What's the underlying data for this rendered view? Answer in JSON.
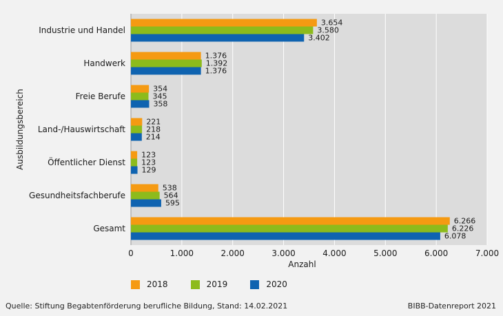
{
  "chart_data": {
    "type": "bar",
    "orientation": "horizontal",
    "categories": [
      "Industrie und Handel",
      "Handwerk",
      "Freie Berufe",
      "Land-/Hauswirtschaft",
      "Öffentlicher Dienst",
      "Gesundheitsfachberufe",
      "Gesamt"
    ],
    "series": [
      {
        "name": "2018",
        "color": "#f59a12",
        "values": [
          3654,
          1376,
          354,
          221,
          123,
          538,
          6266
        ],
        "labels": [
          "3.654",
          "1.376",
          "354",
          "221",
          "123",
          "538",
          "6.266"
        ]
      },
      {
        "name": "2019",
        "color": "#8dbb1c",
        "values": [
          3580,
          1392,
          345,
          218,
          123,
          564,
          6226
        ],
        "labels": [
          "3.580",
          "1.392",
          "345",
          "218",
          "123",
          "564",
          "6.226"
        ]
      },
      {
        "name": "2020",
        "color": "#0f63b0",
        "values": [
          3402,
          1376,
          358,
          214,
          129,
          595,
          6078
        ],
        "labels": [
          "3.402",
          "1.376",
          "358",
          "214",
          "129",
          "595",
          "6.078"
        ]
      }
    ],
    "xlim": [
      0,
      7000
    ],
    "xticks": [
      0,
      1000,
      2000,
      3000,
      4000,
      5000,
      6000,
      7000
    ],
    "xtick_labels": [
      "0",
      "1.000",
      "2.000",
      "3.000",
      "4.000",
      "5.000",
      "6.000",
      "7.000"
    ],
    "xlabel": "Anzahl",
    "ylabel": "Ausbildungsbereich",
    "grid": true,
    "legend_position": "bottom"
  },
  "colors": {
    "plot_background": "#dcdcdc",
    "page_background": "#f2f2f2",
    "gridline": "#ffffff"
  },
  "footer": {
    "source": "Quelle: Stiftung Begabtenförderung berufliche Bildung, Stand: 14.02.2021",
    "credit": "BIBB-Datenreport 2021"
  }
}
